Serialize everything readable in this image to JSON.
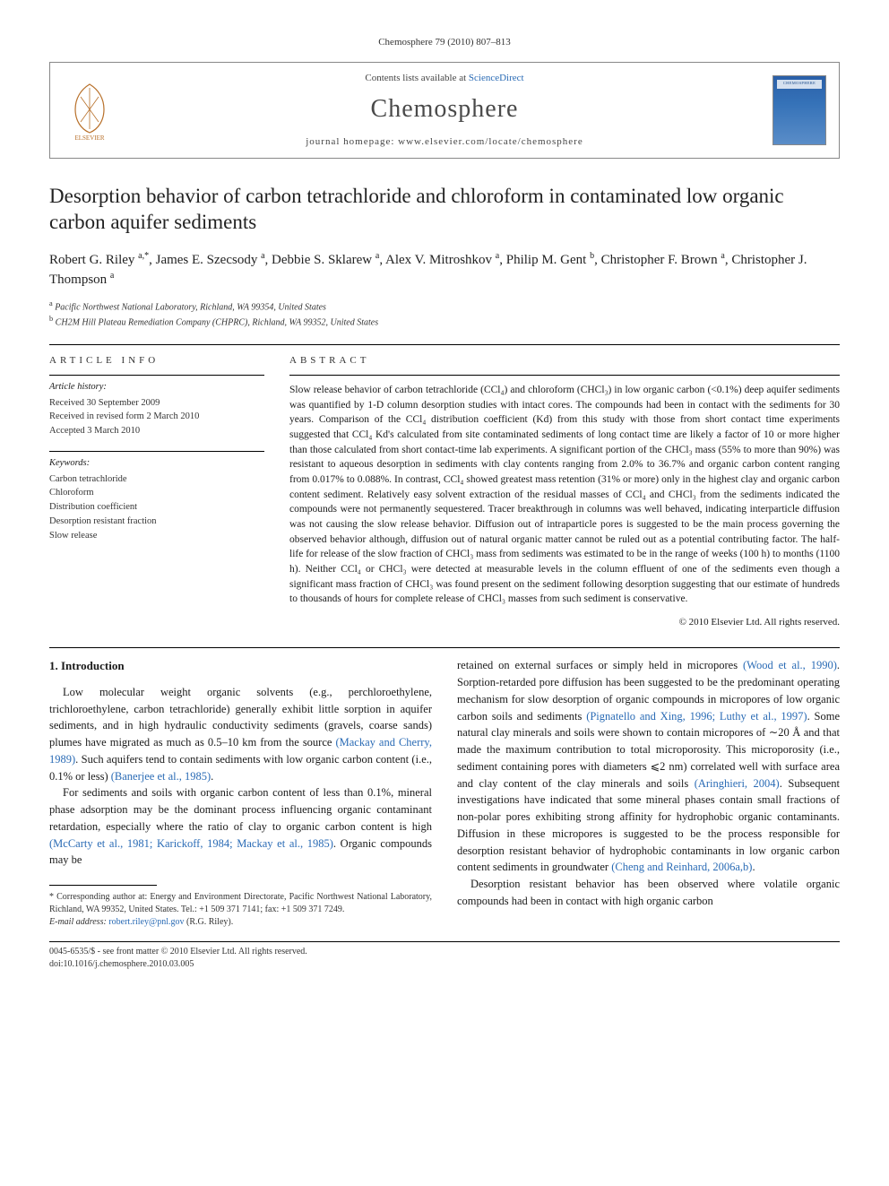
{
  "journal_ref": "Chemosphere 79 (2010) 807–813",
  "header": {
    "contents_prefix": "Contents lists available at ",
    "contents_link": "ScienceDirect",
    "journal_name": "Chemosphere",
    "homepage_prefix": "journal homepage: ",
    "homepage_url": "www.elsevier.com/locate/chemosphere",
    "publisher": "ELSEVIER"
  },
  "title": "Desorption behavior of carbon tetrachloride and chloroform in contaminated low organic carbon aquifer sediments",
  "authors_html": "Robert G. Riley <sup>a,*</sup>, James E. Szecsody <sup>a</sup>, Debbie S. Sklarew <sup>a</sup>, Alex V. Mitroshkov <sup>a</sup>, Philip M. Gent <sup>b</sup>, Christopher F. Brown <sup>a</sup>, Christopher J. Thompson <sup>a</sup>",
  "affiliations": [
    {
      "sup": "a",
      "text": "Pacific Northwest National Laboratory, Richland, WA 99354, United States"
    },
    {
      "sup": "b",
      "text": "CH2M Hill Plateau Remediation Company (CHPRC), Richland, WA 99352, United States"
    }
  ],
  "info": {
    "article_info_label": "ARTICLE INFO",
    "abstract_label": "ABSTRACT",
    "history_hdr": "Article history:",
    "history": [
      "Received 30 September 2009",
      "Received in revised form 2 March 2010",
      "Accepted 3 March 2010"
    ],
    "keywords_hdr": "Keywords:",
    "keywords": [
      "Carbon tetrachloride",
      "Chloroform",
      "Distribution coefficient",
      "Desorption resistant fraction",
      "Slow release"
    ]
  },
  "abstract": "Slow release behavior of carbon tetrachloride (CCl₄) and chloroform (CHCl₃) in low organic carbon (<0.1%) deep aquifer sediments was quantified by 1-D column desorption studies with intact cores. The compounds had been in contact with the sediments for 30 years. Comparison of the CCl₄ distribution coefficient (Kd) from this study with those from short contact time experiments suggested that CCl₄ Kd's calculated from site contaminated sediments of long contact time are likely a factor of 10 or more higher than those calculated from short contact-time lab experiments. A significant portion of the CHCl₃ mass (55% to more than 90%) was resistant to aqueous desorption in sediments with clay contents ranging from 2.0% to 36.7% and organic carbon content ranging from 0.017% to 0.088%. In contrast, CCl₄ showed greatest mass retention (31% or more) only in the highest clay and organic carbon content sediment. Relatively easy solvent extraction of the residual masses of CCl₄ and CHCl₃ from the sediments indicated the compounds were not permanently sequestered. Tracer breakthrough in columns was well behaved, indicating interparticle diffusion was not causing the slow release behavior. Diffusion out of intraparticle pores is suggested to be the main process governing the observed behavior although, diffusion out of natural organic matter cannot be ruled out as a potential contributing factor. The half-life for release of the slow fraction of CHCl₃ mass from sediments was estimated to be in the range of weeks (100 h) to months (1100 h). Neither CCl₄ or CHCl₃ were detected at measurable levels in the column effluent of one of the sediments even though a significant mass fraction of CHCl₃ was found present on the sediment following desorption suggesting that our estimate of hundreds to thousands of hours for complete release of CHCl₃ masses from such sediment is conservative.",
  "copyright": "© 2010 Elsevier Ltd. All rights reserved.",
  "intro": {
    "heading": "1. Introduction",
    "p1_a": "Low molecular weight organic solvents (e.g., perchloroethylene, trichloroethylene, carbon tetrachloride) generally exhibit little sorption in aquifer sediments, and in high hydraulic conductivity sediments (gravels, coarse sands) plumes have migrated as much as 0.5–10 km from the source ",
    "p1_cite1": "(Mackay and Cherry, 1989)",
    "p1_b": ". Such aquifers tend to contain sediments with low organic carbon content (i.e., 0.1% or less) ",
    "p1_cite2": "(Banerjee et al., 1985)",
    "p1_c": ".",
    "p2_a": "For sediments and soils with organic carbon content of less than 0.1%, mineral phase adsorption may be the dominant process influencing organic contaminant retardation, especially where the ratio of clay to organic carbon content is high ",
    "p2_cite1": "(McCarty et al., 1981; Karickoff, 1984; Mackay et al., 1985)",
    "p2_b": ". Organic compounds may be",
    "p3_a": "retained on external surfaces or simply held in micropores ",
    "p3_cite1": "(Wood et al., 1990)",
    "p3_b": ". Sorption-retarded pore diffusion has been suggested to be the predominant operating mechanism for slow desorption of organic compounds in micropores of low organic carbon soils and sediments ",
    "p3_cite2": "(Pignatello and Xing, 1996; Luthy et al., 1997)",
    "p3_c": ". Some natural clay minerals and soils were shown to contain micropores of ∼20 Å and that made the maximum contribution to total microporosity. This microporosity (i.e., sediment containing pores with diameters ⩽2 nm) correlated well with surface area and clay content of the clay minerals and soils ",
    "p3_cite3": "(Aringhieri, 2004)",
    "p3_d": ". Subsequent investigations have indicated that some mineral phases contain small fractions of non-polar pores exhibiting strong affinity for hydrophobic organic contaminants. Diffusion in these micropores is suggested to be the process responsible for desorption resistant behavior of hydrophobic contaminants in low organic carbon content sediments in groundwater ",
    "p3_cite4": "(Cheng and Reinhard, 2006a,b)",
    "p3_e": ".",
    "p4": "Desorption resistant behavior has been observed where volatile organic compounds had been in contact with high organic carbon"
  },
  "footnote": {
    "corr": "* Corresponding author at: Energy and Environment Directorate, Pacific Northwest National Laboratory, Richland, WA 99352, United States. Tel.: +1 509 371 7141; fax: +1 509 371 7249.",
    "email_label": "E-mail address: ",
    "email": "robert.riley@pnl.gov",
    "email_author": " (R.G. Riley)."
  },
  "bottom": {
    "line1": "0045-6535/$ - see front matter © 2010 Elsevier Ltd. All rights reserved.",
    "line2": "doi:10.1016/j.chemosphere.2010.03.005"
  },
  "colors": {
    "link": "#2a6bb5",
    "text": "#1a1a1a",
    "rule": "#000000"
  }
}
